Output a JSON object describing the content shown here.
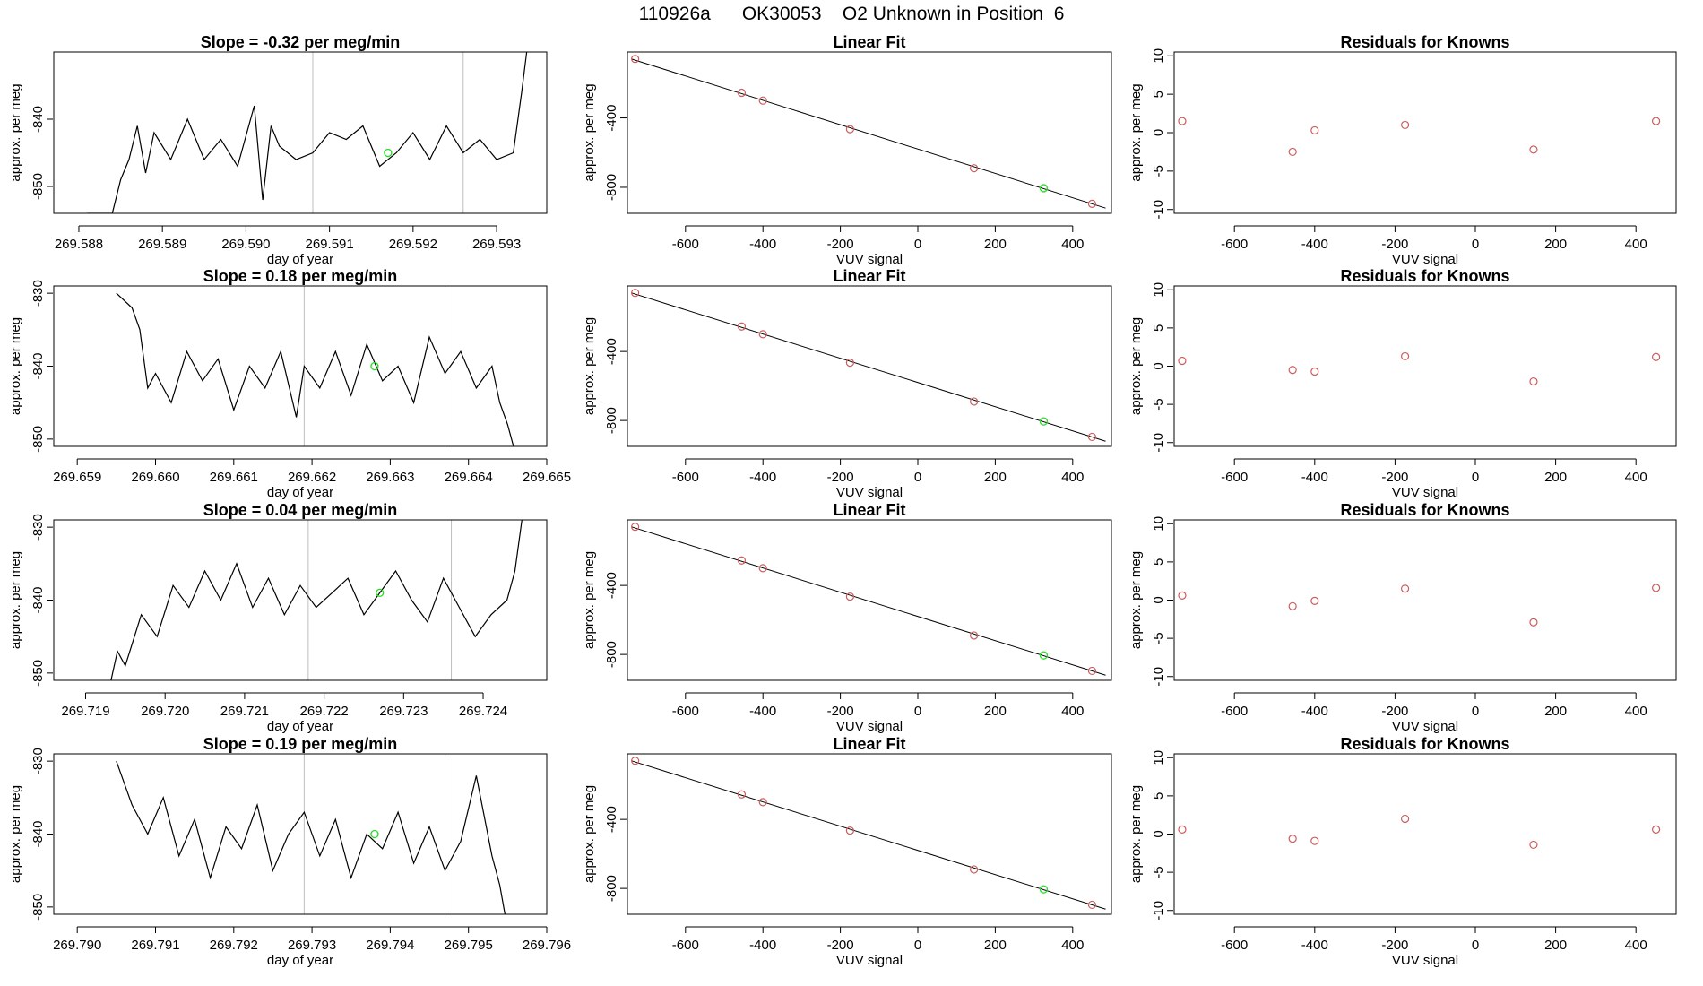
{
  "figure": {
    "suptitle": "110926a      OK30053    O2 Unknown in Position  6"
  },
  "chart_data": [
    {
      "type": "line",
      "title": "Slope =  -0.32  per meg/min",
      "xlabel": "day of year",
      "ylabel": "approx. per meg",
      "xticks": [
        "269.588",
        "269.589",
        "269.590",
        "269.591",
        "269.592",
        "269.593"
      ],
      "xlim": [
        269.5877,
        269.5936
      ],
      "yticks": [
        "-850",
        "-840"
      ],
      "ylim": [
        -854,
        -830
      ],
      "vlines": [
        269.5908,
        269.5926
      ],
      "series": [
        {
          "x": [
            269.5881,
            269.5884,
            269.5885,
            269.5886,
            269.5887,
            269.5888,
            269.5889,
            269.5891,
            269.5893,
            269.5895,
            269.5897,
            269.5899,
            269.5901,
            269.5902,
            269.5903,
            269.5904,
            269.5906,
            269.5908,
            269.591,
            269.5912,
            269.5914,
            269.5916,
            269.5918,
            269.592,
            269.5922,
            269.5924,
            269.5926,
            269.5928,
            269.593,
            269.5932,
            269.5933,
            269.5934
          ],
          "y": [
            -854,
            -854,
            -849,
            -846,
            -841,
            -848,
            -842,
            -846,
            -840,
            -846,
            -843,
            -847,
            -838,
            -852,
            -841,
            -844,
            -846,
            -845,
            -842,
            -843,
            -841,
            -847,
            -845,
            -842,
            -846,
            -841,
            -845,
            -843,
            -846,
            -845,
            -836,
            -826
          ]
        }
      ],
      "highlight": {
        "x": 269.5917,
        "y": -845
      }
    },
    {
      "type": "scatter",
      "title": "Linear Fit",
      "xlabel": "VUV signal",
      "ylabel": "approx. per meg",
      "xticks": [
        "-600",
        "-400",
        "-200",
        "0",
        "200",
        "400"
      ],
      "xlim": [
        -750,
        500
      ],
      "yticks": [
        "-400",
        "-800"
      ],
      "ylim": [
        -950,
        -20
      ],
      "fit_line": {
        "x": [
          -740,
          485
        ],
        "y": [
          -60,
          -920
        ]
      },
      "points": {
        "x": [
          -730,
          -455,
          -400,
          -175,
          145,
          450
        ],
        "y": [
          -60,
          -255,
          -300,
          -465,
          -690,
          -895
        ]
      },
      "highlight": {
        "x": 325,
        "y": -805
      }
    },
    {
      "type": "scatter",
      "title": "Residuals for Knowns",
      "xlabel": "VUV signal",
      "ylabel": "approx. per meg",
      "xticks": [
        "-600",
        "-400",
        "-200",
        "0",
        "200",
        "400"
      ],
      "xlim": [
        -750,
        500
      ],
      "yticks": [
        "-10",
        "-5",
        "0",
        "5",
        "10"
      ],
      "ylim": [
        -10.5,
        10.5
      ],
      "points": {
        "x": [
          -730,
          -455,
          -400,
          -175,
          145,
          450
        ],
        "y": [
          1.5,
          -2.5,
          0.3,
          1.0,
          -2.2,
          1.5
        ]
      }
    },
    {
      "type": "line",
      "title": "Slope =  0.18  per meg/min",
      "xlabel": "day of year",
      "ylabel": "approx. per meg",
      "xticks": [
        "269.659",
        "269.660",
        "269.661",
        "269.662",
        "269.663",
        "269.664",
        "269.665"
      ],
      "xlim": [
        269.6587,
        269.665
      ],
      "yticks": [
        "-850",
        "-840",
        "-830"
      ],
      "ylim": [
        -851,
        -829
      ],
      "vlines": [
        269.6619,
        269.6637
      ],
      "series": [
        {
          "x": [
            269.6595,
            269.6597,
            269.6598,
            269.6599,
            269.66,
            269.6602,
            269.6604,
            269.6606,
            269.6608,
            269.661,
            269.6612,
            269.6614,
            269.6616,
            269.6618,
            269.6619,
            269.6621,
            269.6623,
            269.6625,
            269.6627,
            269.6629,
            269.6631,
            269.6633,
            269.6635,
            269.6637,
            269.6639,
            269.6641,
            269.6643,
            269.6644,
            269.6645,
            269.6646
          ],
          "y": [
            -830,
            -832,
            -835,
            -843,
            -841,
            -845,
            -838,
            -842,
            -839,
            -846,
            -840,
            -843,
            -838,
            -847,
            -840,
            -843,
            -838,
            -844,
            -837,
            -842,
            -840,
            -845,
            -836,
            -841,
            -838,
            -843,
            -840,
            -845,
            -848,
            -852
          ]
        }
      ],
      "highlight": {
        "x": 269.6628,
        "y": -840
      }
    },
    {
      "type": "scatter",
      "title": "Linear Fit",
      "xlabel": "VUV signal",
      "ylabel": "approx. per meg",
      "xticks": [
        "-600",
        "-400",
        "-200",
        "0",
        "200",
        "400"
      ],
      "xlim": [
        -750,
        500
      ],
      "yticks": [
        "-400",
        "-800"
      ],
      "ylim": [
        -950,
        -20
      ],
      "fit_line": {
        "x": [
          -740,
          485
        ],
        "y": [
          -60,
          -920
        ]
      },
      "points": {
        "x": [
          -730,
          -455,
          -400,
          -175,
          145,
          450
        ],
        "y": [
          -60,
          -255,
          -300,
          -465,
          -690,
          -895
        ]
      },
      "highlight": {
        "x": 325,
        "y": -805
      }
    },
    {
      "type": "scatter",
      "title": "Residuals for Knowns",
      "xlabel": "VUV signal",
      "ylabel": "approx. per meg",
      "xticks": [
        "-600",
        "-400",
        "-200",
        "0",
        "200",
        "400"
      ],
      "xlim": [
        -750,
        500
      ],
      "yticks": [
        "-10",
        "-5",
        "0",
        "5",
        "10"
      ],
      "ylim": [
        -10.5,
        10.5
      ],
      "points": {
        "x": [
          -730,
          -455,
          -400,
          -175,
          145,
          450
        ],
        "y": [
          0.7,
          -0.5,
          -0.7,
          1.3,
          -2.0,
          1.2
        ]
      }
    },
    {
      "type": "line",
      "title": "Slope =  0.04  per meg/min",
      "xlabel": "day of year",
      "ylabel": "approx. per meg",
      "xticks": [
        "269.719",
        "269.720",
        "269.721",
        "269.722",
        "269.723",
        "269.724"
      ],
      "xlim": [
        269.7186,
        269.7248
      ],
      "yticks": [
        "-850",
        "-840",
        "-830"
      ],
      "ylim": [
        -851,
        -829
      ],
      "vlines": [
        269.7218,
        269.7236
      ],
      "series": [
        {
          "x": [
            269.7193,
            269.7194,
            269.7195,
            269.7197,
            269.7199,
            269.7201,
            269.7203,
            269.7205,
            269.7207,
            269.7209,
            269.7211,
            269.7213,
            269.7215,
            269.7217,
            269.7219,
            269.7221,
            269.7223,
            269.7225,
            269.7227,
            269.7229,
            269.7231,
            269.7233,
            269.7235,
            269.7237,
            269.7239,
            269.7241,
            269.7243,
            269.7244,
            269.7245
          ],
          "y": [
            -852,
            -847,
            -849,
            -842,
            -845,
            -838,
            -841,
            -836,
            -840,
            -835,
            -841,
            -837,
            -842,
            -838,
            -841,
            -839,
            -837,
            -842,
            -839,
            -836,
            -840,
            -843,
            -837,
            -841,
            -845,
            -842,
            -840,
            -836,
            -828
          ]
        }
      ],
      "highlight": {
        "x": 269.7227,
        "y": -839
      }
    },
    {
      "type": "scatter",
      "title": "Linear Fit",
      "xlabel": "VUV signal",
      "ylabel": "approx. per meg",
      "xticks": [
        "-600",
        "-400",
        "-200",
        "0",
        "200",
        "400"
      ],
      "xlim": [
        -750,
        500
      ],
      "yticks": [
        "-400",
        "-800"
      ],
      "ylim": [
        -950,
        -20
      ],
      "fit_line": {
        "x": [
          -740,
          485
        ],
        "y": [
          -60,
          -920
        ]
      },
      "points": {
        "x": [
          -730,
          -455,
          -400,
          -175,
          145,
          450
        ],
        "y": [
          -60,
          -255,
          -300,
          -465,
          -690,
          -895
        ]
      },
      "highlight": {
        "x": 325,
        "y": -805
      }
    },
    {
      "type": "scatter",
      "title": "Residuals for Knowns",
      "xlabel": "VUV signal",
      "ylabel": "approx. per meg",
      "xticks": [
        "-600",
        "-400",
        "-200",
        "0",
        "200",
        "400"
      ],
      "xlim": [
        -750,
        500
      ],
      "yticks": [
        "-10",
        "-5",
        "0",
        "5",
        "10"
      ],
      "ylim": [
        -10.5,
        10.5
      ],
      "points": {
        "x": [
          -730,
          -455,
          -400,
          -175,
          145,
          450
        ],
        "y": [
          0.6,
          -0.8,
          -0.1,
          1.5,
          -2.9,
          1.6
        ]
      }
    },
    {
      "type": "line",
      "title": "Slope =  0.19  per meg/min",
      "xlabel": "day of year",
      "ylabel": "approx. per meg",
      "xticks": [
        "269.790",
        "269.791",
        "269.792",
        "269.793",
        "269.794",
        "269.795",
        "269.796"
      ],
      "xlim": [
        269.7897,
        269.796
      ],
      "yticks": [
        "-850",
        "-840",
        "-830"
      ],
      "ylim": [
        -851,
        -829
      ],
      "vlines": [
        269.7929,
        269.7947
      ],
      "series": [
        {
          "x": [
            269.7905,
            269.7907,
            269.7909,
            269.7911,
            269.7913,
            269.7915,
            269.7917,
            269.7919,
            269.7921,
            269.7923,
            269.7925,
            269.7927,
            269.7929,
            269.7931,
            269.7933,
            269.7935,
            269.7937,
            269.7939,
            269.7941,
            269.7943,
            269.7945,
            269.7947,
            269.7949,
            269.7951,
            269.7953,
            269.7954,
            269.7955
          ],
          "y": [
            -830,
            -836,
            -840,
            -835,
            -843,
            -838,
            -846,
            -839,
            -842,
            -836,
            -845,
            -840,
            -837,
            -843,
            -838,
            -846,
            -840,
            -842,
            -837,
            -844,
            -839,
            -845,
            -841,
            -832,
            -843,
            -847,
            -853
          ]
        }
      ],
      "highlight": {
        "x": 269.7938,
        "y": -840
      }
    },
    {
      "type": "scatter",
      "title": "Linear Fit",
      "xlabel": "VUV signal",
      "ylabel": "approx. per meg",
      "xticks": [
        "-600",
        "-400",
        "-200",
        "0",
        "200",
        "400"
      ],
      "xlim": [
        -750,
        500
      ],
      "yticks": [
        "-400",
        "-800"
      ],
      "ylim": [
        -950,
        -20
      ],
      "fit_line": {
        "x": [
          -740,
          485
        ],
        "y": [
          -60,
          -920
        ]
      },
      "points": {
        "x": [
          -730,
          -455,
          -400,
          -175,
          145,
          450
        ],
        "y": [
          -60,
          -255,
          -300,
          -465,
          -690,
          -895
        ]
      },
      "highlight": {
        "x": 325,
        "y": -805
      }
    },
    {
      "type": "scatter",
      "title": "Residuals for Knowns",
      "xlabel": "VUV signal",
      "ylabel": "approx. per meg",
      "xticks": [
        "-600",
        "-400",
        "-200",
        "0",
        "200",
        "400"
      ],
      "xlim": [
        -750,
        500
      ],
      "yticks": [
        "-10",
        "-5",
        "0",
        "5",
        "10"
      ],
      "ylim": [
        -10.5,
        10.5
      ],
      "points": {
        "x": [
          -730,
          -455,
          -400,
          -175,
          145,
          450
        ],
        "y": [
          0.6,
          -0.6,
          -0.9,
          2.0,
          -1.4,
          0.6
        ]
      }
    }
  ],
  "colors": {
    "line": "#000000",
    "point": "#cd5c5c",
    "highlight": "#22dd22",
    "vline": "#bebebe"
  }
}
